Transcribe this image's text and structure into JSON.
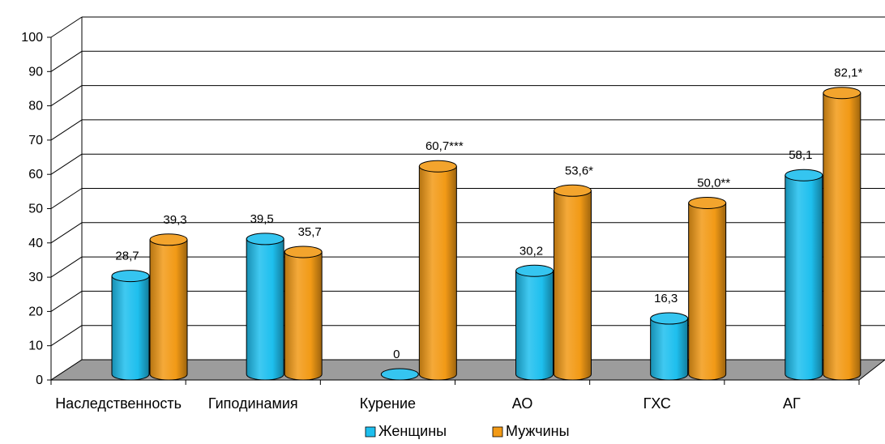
{
  "chart_data": {
    "type": "bar",
    "categories": [
      "Наследственность",
      "Гиподинамия",
      "Курение",
      "АО",
      "ГХС",
      "АГ"
    ],
    "series": [
      {
        "name": "Женщины",
        "color": "#1EBFEE",
        "values": [
          28.7,
          39.5,
          0,
          30.2,
          16.3,
          58.1
        ],
        "labels": [
          "28,7",
          "39,5",
          "0",
          "30,2",
          "16,3",
          "58,1"
        ]
      },
      {
        "name": "Мужчины",
        "color": "#F29A16",
        "values": [
          39.3,
          35.7,
          60.7,
          53.6,
          50.0,
          82.1
        ],
        "labels": [
          "39,3",
          "35,7",
          "60,7***",
          "53,6*",
          "50,0**",
          "82,1*"
        ]
      }
    ],
    "ylim": [
      0,
      100
    ],
    "yticks": [
      "0",
      "10",
      "20",
      "30",
      "40",
      "50",
      "60",
      "70",
      "80",
      "90",
      "100"
    ],
    "grid": true,
    "legend": "bottom",
    "floor_color": "#9C9C9C"
  }
}
